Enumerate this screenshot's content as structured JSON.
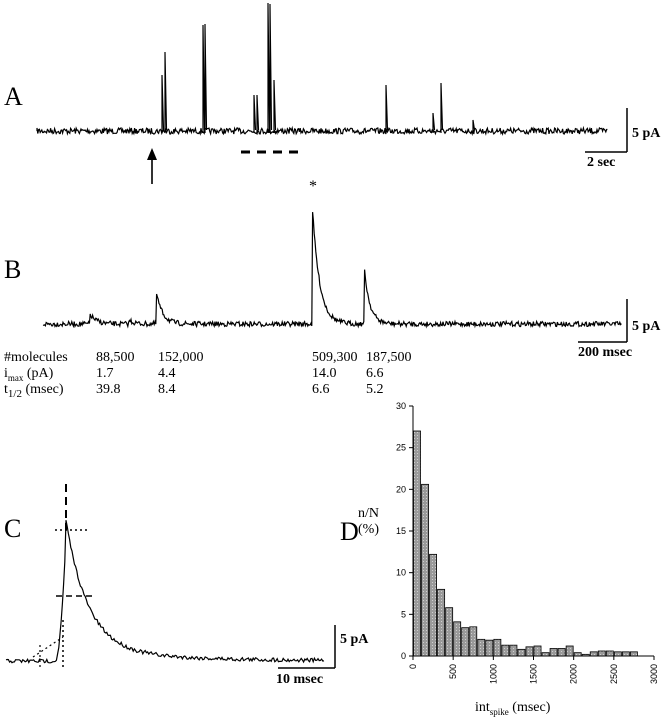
{
  "panel_a": {
    "letter": "A",
    "scale_y": "5 pA",
    "scale_x": "2 sec"
  },
  "panel_b": {
    "letter": "B",
    "scale_y": "5 pA",
    "scale_x": "200 msec",
    "asterisk": "*",
    "table": {
      "rows": [
        {
          "label": "#molecules",
          "values": [
            "88,500",
            "152,000",
            "509,300",
            "187,500"
          ]
        },
        {
          "label_main": "i",
          "label_sub": "max",
          "label_tail": " (pA)",
          "values": [
            "1.7",
            "4.4",
            "14.0",
            "6.6"
          ]
        },
        {
          "label_main": "t",
          "label_sub": "1/2",
          "label_tail": " (msec)",
          "values": [
            "39.8",
            "8.4",
            "6.6",
            "5.2"
          ]
        }
      ]
    }
  },
  "panel_c": {
    "letter": "C",
    "scale_y": "5 pA",
    "scale_x": "10 msec"
  },
  "panel_d": {
    "letter": "D",
    "ylabel_top": "n/N",
    "ylabel_bottom": "(%)",
    "xlabel_main": "int",
    "xlabel_sub": "spike",
    "xlabel_tail": " (msec)"
  },
  "chart_data": [
    {
      "type": "bar",
      "panel": "D",
      "xlabel": "intspike (msec)",
      "ylabel": "n/N (%)",
      "xlim": [
        0,
        3000
      ],
      "ylim": [
        0,
        30
      ],
      "xticks": [
        0,
        500,
        1000,
        1500,
        2000,
        2500,
        3000
      ],
      "yticks": [
        0,
        5,
        10,
        15,
        20,
        25,
        30
      ],
      "bin_width": 100,
      "x": [
        50,
        150,
        250,
        350,
        450,
        550,
        650,
        750,
        850,
        950,
        1050,
        1150,
        1250,
        1350,
        1450,
        1550,
        1650,
        1750,
        1850,
        1950,
        2050,
        2150,
        2250,
        2350,
        2450,
        2550,
        2650,
        2750
      ],
      "values": [
        27.0,
        20.6,
        12.2,
        8.0,
        5.8,
        4.1,
        3.4,
        3.5,
        2.0,
        1.9,
        2.0,
        1.3,
        1.3,
        0.8,
        1.1,
        1.2,
        0.4,
        0.9,
        0.9,
        1.2,
        0.4,
        0.2,
        0.5,
        0.6,
        0.6,
        0.5,
        0.5,
        0.5
      ]
    }
  ]
}
